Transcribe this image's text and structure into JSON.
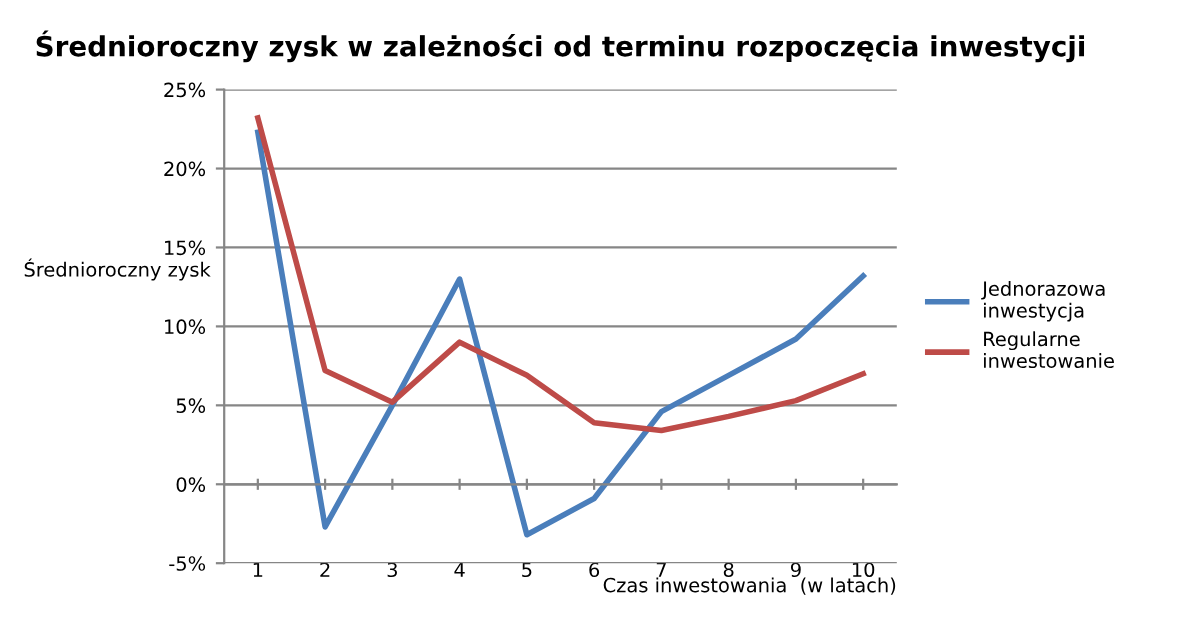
{
  "chart_data": {
    "type": "line",
    "title": "Średnioroczny zysk w zależności od terminu rozpoczęcia inwestycji",
    "xlabel": "Czas inwestowania  (w latach)",
    "ylabel": "Średnioroczny zysk",
    "categories": [
      "1",
      "2",
      "3",
      "4",
      "5",
      "6",
      "7",
      "8",
      "9",
      "10"
    ],
    "series": [
      {
        "name": "Jednorazowa inwestycja",
        "color": "#4a7ebb",
        "values": [
          22.3,
          -2.7,
          5.0,
          13.0,
          -3.2,
          -0.9,
          4.6,
          6.9,
          9.2,
          13.2
        ]
      },
      {
        "name": "Regularne inwestowanie",
        "color": "#be4b48",
        "values": [
          23.2,
          7.2,
          5.2,
          9.0,
          6.9,
          3.9,
          3.4,
          4.3,
          5.3,
          7.0
        ]
      }
    ],
    "ylim": [
      -5,
      25
    ],
    "yticks": [
      {
        "value": -5,
        "label": "-5%"
      },
      {
        "value": 0,
        "label": "0%"
      },
      {
        "value": 5,
        "label": "5%"
      },
      {
        "value": 10,
        "label": "10%"
      },
      {
        "value": 15,
        "label": "15%"
      },
      {
        "value": 20,
        "label": "20%"
      },
      {
        "value": 25,
        "label": "25%"
      }
    ],
    "grid": "y",
    "legend": "right",
    "marker": "none",
    "line_style": "solid"
  }
}
